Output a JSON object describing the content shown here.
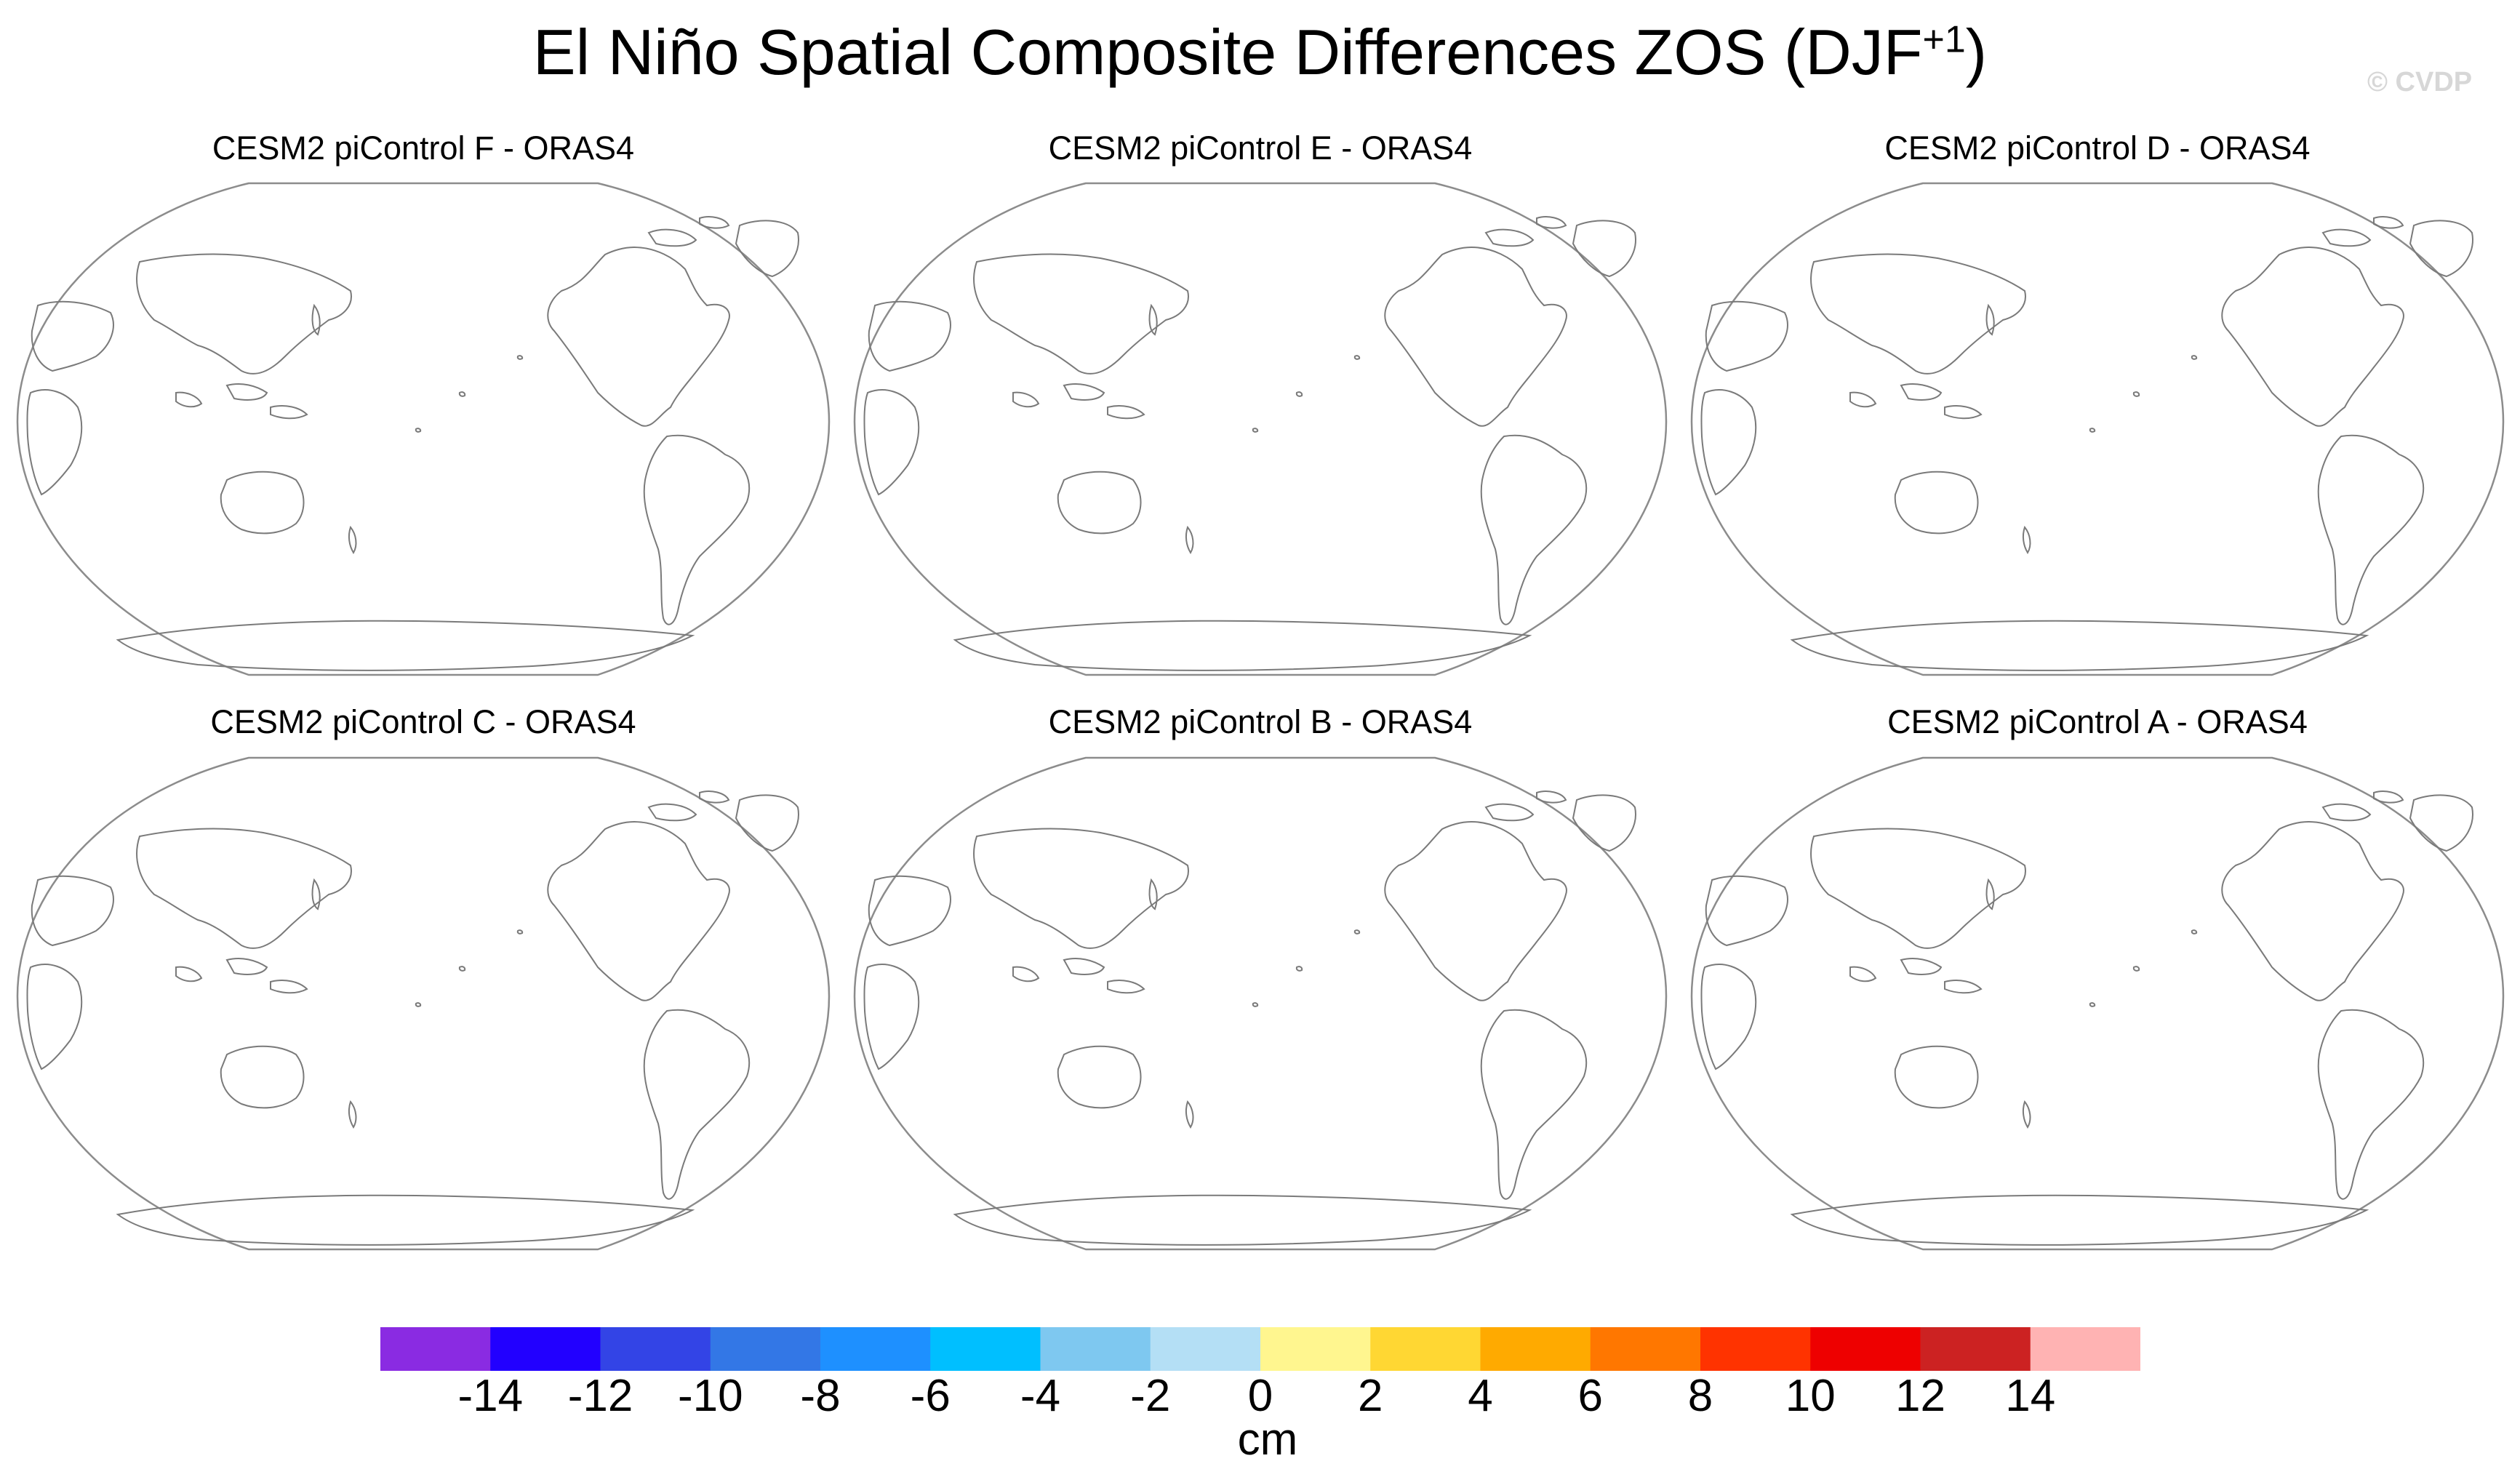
{
  "figure": {
    "title": "El Niño Spatial Composite Differences ZOS (DJF",
    "title_superscript": "+1",
    "title_close": ")",
    "watermark": "© CVDP"
  },
  "panels": [
    {
      "title": "CESM2 piControl F - ORAS4"
    },
    {
      "title": "CESM2 piControl E - ORAS4"
    },
    {
      "title": "CESM2 piControl D - ORAS4"
    },
    {
      "title": "CESM2 piControl C - ORAS4"
    },
    {
      "title": "CESM2 piControl B - ORAS4"
    },
    {
      "title": "CESM2 piControl A - ORAS4"
    }
  ],
  "colorbar": {
    "units": "cm",
    "colors": [
      "#8a2be2",
      "#2200ff",
      "#3344e6",
      "#3377e6",
      "#1e90ff",
      "#00bfff",
      "#7ec8f0",
      "#b4dff5",
      "#fff68f",
      "#ffd733",
      "#ffaa00",
      "#ff7700",
      "#ff3300",
      "#ee0000",
      "#cc2222",
      "#ffb3b3"
    ],
    "labels": [
      "-14",
      "-12",
      "-10",
      "-8",
      "-6",
      "-4",
      "-2",
      "0",
      "2",
      "4",
      "6",
      "8",
      "10",
      "12",
      "14"
    ]
  }
}
